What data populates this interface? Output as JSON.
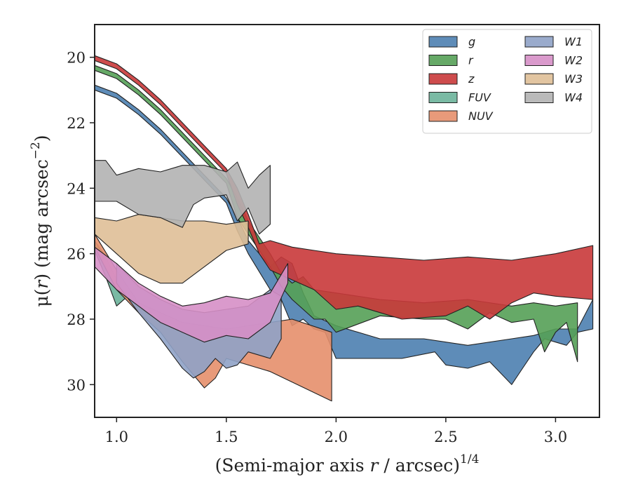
{
  "chart_data": {
    "type": "area",
    "title": "",
    "xlabel": "(Semi-major axis r / arcsec)",
    "xlabel_italic_symbol": "r",
    "xlabel_prefix": "(Semi-major axis ",
    "xlabel_suffix": " / arcsec)",
    "xlabel_exponent": "1/4",
    "ylabel_prefix": "μ(",
    "ylabel_symbol": "r",
    "ylabel_suffix": ") (mag arcsec",
    "ylabel_exponent": "−2",
    "ylabel_close": ")",
    "xlim": [
      0.9,
      3.2
    ],
    "ylim": [
      31,
      19
    ],
    "y_inverted": true,
    "xticks": [
      1.0,
      1.5,
      2.0,
      2.5,
      3.0
    ],
    "xtick_labels": [
      "1.0",
      "1.5",
      "2.0",
      "2.5",
      "3.0"
    ],
    "yticks": [
      20,
      22,
      24,
      26,
      28,
      30
    ],
    "ytick_labels": [
      "20",
      "22",
      "24",
      "26",
      "28",
      "30"
    ],
    "grid": false,
    "legend_placement": "top-right",
    "legend_columns": 2,
    "series": [
      {
        "name": "g",
        "color": "#4c7fb0",
        "upper": [
          [
            0.9,
            20.85
          ],
          [
            1.0,
            21.1
          ],
          [
            1.1,
            21.6
          ],
          [
            1.2,
            22.2
          ],
          [
            1.3,
            22.9
          ],
          [
            1.4,
            23.6
          ],
          [
            1.5,
            24.3
          ],
          [
            1.55,
            24.9
          ],
          [
            1.6,
            25.6
          ],
          [
            1.7,
            26.4
          ],
          [
            1.75,
            26.1
          ],
          [
            1.8,
            26.3
          ],
          [
            1.85,
            27.2
          ],
          [
            1.9,
            27.9
          ],
          [
            2.0,
            28.2
          ],
          [
            2.2,
            28.6
          ],
          [
            2.4,
            28.6
          ],
          [
            2.6,
            28.8
          ],
          [
            2.8,
            28.6
          ],
          [
            2.9,
            28.5
          ],
          [
            3.0,
            28.3
          ],
          [
            3.1,
            28.3
          ],
          [
            3.17,
            27.4
          ]
        ],
        "lower": [
          [
            3.17,
            28.3
          ],
          [
            3.1,
            28.4
          ],
          [
            3.05,
            28.8
          ],
          [
            3.0,
            28.7
          ],
          [
            2.95,
            28.6
          ],
          [
            2.9,
            29.0
          ],
          [
            2.85,
            29.5
          ],
          [
            2.8,
            30.0
          ],
          [
            2.7,
            29.3
          ],
          [
            2.6,
            29.5
          ],
          [
            2.5,
            29.4
          ],
          [
            2.45,
            29.0
          ],
          [
            2.3,
            29.2
          ],
          [
            2.1,
            29.2
          ],
          [
            2.0,
            29.2
          ],
          [
            1.95,
            28.4
          ],
          [
            1.9,
            28.3
          ],
          [
            1.85,
            28.0
          ],
          [
            1.8,
            28.2
          ],
          [
            1.75,
            27.4
          ],
          [
            1.7,
            27.1
          ],
          [
            1.6,
            26.0
          ],
          [
            1.55,
            25.3
          ],
          [
            1.5,
            24.45
          ],
          [
            1.4,
            23.75
          ],
          [
            1.3,
            23.05
          ],
          [
            1.2,
            22.35
          ],
          [
            1.1,
            21.75
          ],
          [
            1.0,
            21.25
          ],
          [
            0.9,
            21.0
          ]
        ]
      },
      {
        "name": "r",
        "color": "#55a056",
        "upper": [
          [
            0.9,
            20.25
          ],
          [
            1.0,
            20.5
          ],
          [
            1.1,
            21.0
          ],
          [
            1.2,
            21.6
          ],
          [
            1.3,
            22.3
          ],
          [
            1.4,
            23.0
          ],
          [
            1.5,
            23.7
          ],
          [
            1.55,
            24.3
          ],
          [
            1.6,
            25.0
          ],
          [
            1.7,
            26.0
          ],
          [
            1.75,
            26.6
          ],
          [
            1.8,
            26.9
          ],
          [
            1.85,
            26.7
          ],
          [
            1.9,
            27.1
          ],
          [
            2.0,
            27.2
          ],
          [
            2.2,
            27.4
          ],
          [
            2.4,
            27.5
          ],
          [
            2.6,
            27.4
          ],
          [
            2.8,
            27.6
          ],
          [
            2.9,
            27.5
          ],
          [
            3.0,
            27.6
          ],
          [
            3.1,
            27.5
          ]
        ],
        "lower": [
          [
            3.1,
            29.3
          ],
          [
            3.05,
            28.1
          ],
          [
            3.0,
            28.4
          ],
          [
            2.95,
            29.0
          ],
          [
            2.9,
            28.0
          ],
          [
            2.8,
            28.1
          ],
          [
            2.7,
            27.8
          ],
          [
            2.6,
            28.3
          ],
          [
            2.5,
            28.0
          ],
          [
            2.4,
            28.0
          ],
          [
            2.2,
            27.9
          ],
          [
            2.0,
            28.4
          ],
          [
            1.95,
            28.0
          ],
          [
            1.9,
            28.0
          ],
          [
            1.85,
            27.7
          ],
          [
            1.8,
            27.4
          ],
          [
            1.75,
            27.0
          ],
          [
            1.7,
            26.4
          ],
          [
            1.6,
            25.4
          ],
          [
            1.55,
            24.9
          ],
          [
            1.5,
            23.85
          ],
          [
            1.4,
            23.15
          ],
          [
            1.3,
            22.45
          ],
          [
            1.2,
            21.75
          ],
          [
            1.1,
            21.15
          ],
          [
            1.0,
            20.65
          ],
          [
            0.9,
            20.4
          ]
        ]
      },
      {
        "name": "z",
        "color": "#c9383a",
        "upper": [
          [
            0.9,
            19.95
          ],
          [
            1.0,
            20.2
          ],
          [
            1.1,
            20.7
          ],
          [
            1.2,
            21.3
          ],
          [
            1.3,
            22.0
          ],
          [
            1.4,
            22.7
          ],
          [
            1.5,
            23.4
          ],
          [
            1.55,
            24.0
          ],
          [
            1.6,
            24.8
          ],
          [
            1.65,
            25.7
          ],
          [
            1.7,
            25.6
          ],
          [
            1.8,
            25.8
          ],
          [
            1.9,
            25.9
          ],
          [
            2.0,
            26.0
          ],
          [
            2.2,
            26.1
          ],
          [
            2.4,
            26.2
          ],
          [
            2.6,
            26.1
          ],
          [
            2.8,
            26.2
          ],
          [
            3.0,
            26.0
          ],
          [
            3.17,
            25.75
          ]
        ],
        "lower": [
          [
            3.17,
            27.4
          ],
          [
            3.0,
            27.3
          ],
          [
            2.9,
            27.2
          ],
          [
            2.8,
            27.5
          ],
          [
            2.7,
            28.0
          ],
          [
            2.6,
            27.6
          ],
          [
            2.5,
            27.9
          ],
          [
            2.3,
            28.0
          ],
          [
            2.2,
            27.8
          ],
          [
            2.1,
            27.6
          ],
          [
            2.0,
            27.7
          ],
          [
            1.9,
            27.1
          ],
          [
            1.8,
            26.8
          ],
          [
            1.7,
            26.5
          ],
          [
            1.65,
            26.0
          ],
          [
            1.6,
            25.2
          ],
          [
            1.55,
            24.5
          ],
          [
            1.5,
            23.55
          ],
          [
            1.4,
            22.85
          ],
          [
            1.3,
            22.15
          ],
          [
            1.2,
            21.45
          ],
          [
            1.1,
            20.85
          ],
          [
            1.0,
            20.35
          ],
          [
            0.9,
            20.1
          ]
        ]
      },
      {
        "name": "FUV",
        "color": "#6bb39a",
        "upper": [
          [
            0.9,
            25.6
          ],
          [
            0.95,
            26.1
          ],
          [
            1.0,
            26.8
          ],
          [
            1.05,
            27.1
          ]
        ],
        "lower": [
          [
            1.05,
            27.3
          ],
          [
            1.0,
            27.6
          ],
          [
            0.95,
            26.7
          ],
          [
            0.9,
            25.9
          ]
        ]
      },
      {
        "name": "NUV",
        "color": "#e58f6c",
        "upper": [
          [
            0.9,
            25.4
          ],
          [
            1.0,
            26.5
          ],
          [
            1.1,
            27.5
          ],
          [
            1.3,
            28.1
          ],
          [
            1.5,
            28.3
          ],
          [
            1.7,
            28.1
          ],
          [
            1.8,
            28.0
          ],
          [
            1.98,
            28.4
          ]
        ],
        "lower": [
          [
            1.98,
            30.5
          ],
          [
            1.7,
            29.6
          ],
          [
            1.5,
            29.2
          ],
          [
            1.45,
            29.8
          ],
          [
            1.4,
            30.1
          ],
          [
            1.3,
            29.3
          ],
          [
            1.2,
            28.4
          ],
          [
            1.1,
            27.8
          ],
          [
            1.0,
            27.1
          ],
          [
            0.9,
            25.8
          ]
        ]
      },
      {
        "name": "W1",
        "color": "#8fa2c7",
        "upper": [
          [
            1.0,
            26.3
          ],
          [
            1.1,
            27.0
          ],
          [
            1.2,
            27.4
          ],
          [
            1.3,
            27.7
          ],
          [
            1.4,
            27.8
          ],
          [
            1.5,
            27.7
          ],
          [
            1.6,
            27.6
          ],
          [
            1.7,
            27.1
          ],
          [
            1.75,
            27.3
          ]
        ],
        "lower": [
          [
            1.75,
            28.6
          ],
          [
            1.7,
            29.2
          ],
          [
            1.6,
            29.0
          ],
          [
            1.55,
            29.4
          ],
          [
            1.5,
            29.5
          ],
          [
            1.45,
            29.2
          ],
          [
            1.4,
            29.6
          ],
          [
            1.35,
            29.8
          ],
          [
            1.3,
            29.5
          ],
          [
            1.2,
            28.6
          ],
          [
            1.1,
            27.8
          ],
          [
            1.0,
            26.9
          ]
        ]
      },
      {
        "name": "W2",
        "color": "#d68fc7",
        "upper": [
          [
            0.9,
            25.8
          ],
          [
            1.0,
            26.3
          ],
          [
            1.1,
            26.9
          ],
          [
            1.2,
            27.3
          ],
          [
            1.3,
            27.6
          ],
          [
            1.4,
            27.5
          ],
          [
            1.5,
            27.3
          ],
          [
            1.6,
            27.4
          ],
          [
            1.7,
            27.2
          ],
          [
            1.78,
            26.3
          ]
        ],
        "lower": [
          [
            1.78,
            26.9
          ],
          [
            1.7,
            28.1
          ],
          [
            1.6,
            28.6
          ],
          [
            1.5,
            28.5
          ],
          [
            1.4,
            28.7
          ],
          [
            1.3,
            28.4
          ],
          [
            1.2,
            28.1
          ],
          [
            1.1,
            27.6
          ],
          [
            1.0,
            27.1
          ],
          [
            0.9,
            26.4
          ]
        ]
      },
      {
        "name": "W3",
        "color": "#dfbf97",
        "upper": [
          [
            0.9,
            24.9
          ],
          [
            1.0,
            25.0
          ],
          [
            1.1,
            24.8
          ],
          [
            1.2,
            24.9
          ],
          [
            1.3,
            25.0
          ],
          [
            1.4,
            25.0
          ],
          [
            1.5,
            25.1
          ],
          [
            1.6,
            25.0
          ]
        ],
        "lower": [
          [
            1.6,
            25.7
          ],
          [
            1.5,
            25.9
          ],
          [
            1.4,
            26.4
          ],
          [
            1.3,
            26.9
          ],
          [
            1.2,
            26.9
          ],
          [
            1.1,
            26.6
          ],
          [
            1.0,
            26.0
          ],
          [
            0.9,
            25.4
          ]
        ]
      },
      {
        "name": "W4",
        "color": "#b3b3b3",
        "upper": [
          [
            0.9,
            23.15
          ],
          [
            0.95,
            23.15
          ],
          [
            1.0,
            23.6
          ],
          [
            1.1,
            23.4
          ],
          [
            1.2,
            23.5
          ],
          [
            1.3,
            23.3
          ],
          [
            1.4,
            23.3
          ],
          [
            1.5,
            23.5
          ],
          [
            1.55,
            23.2
          ],
          [
            1.6,
            24.0
          ],
          [
            1.65,
            23.6
          ],
          [
            1.7,
            23.3
          ]
        ],
        "lower": [
          [
            1.7,
            25.1
          ],
          [
            1.65,
            25.4
          ],
          [
            1.6,
            24.6
          ],
          [
            1.55,
            25.0
          ],
          [
            1.5,
            24.2
          ],
          [
            1.4,
            24.3
          ],
          [
            1.35,
            24.5
          ],
          [
            1.3,
            25.2
          ],
          [
            1.2,
            24.9
          ],
          [
            1.1,
            24.8
          ],
          [
            1.0,
            24.4
          ],
          [
            0.9,
            24.4
          ]
        ]
      }
    ]
  }
}
